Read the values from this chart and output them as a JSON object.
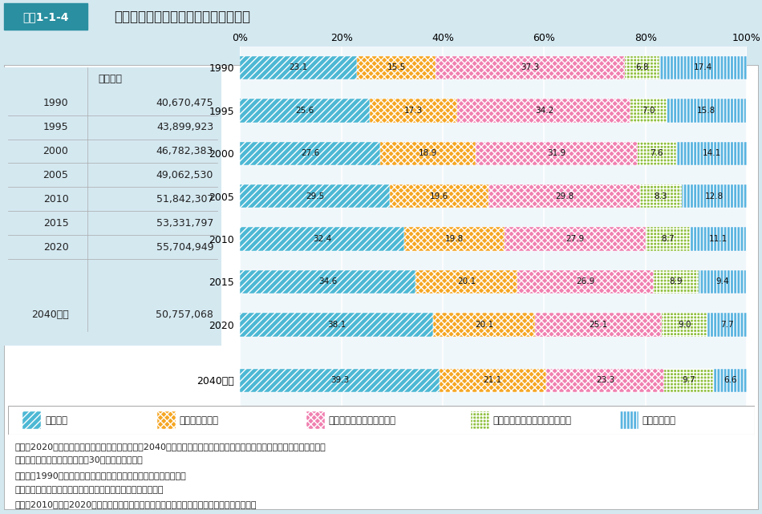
{
  "title": "図表1-1-4　世帯総数・世帯類型の構成割合の推移",
  "header_box_label": "図表1-1-4",
  "header_title": "世帯総数・世帯類型の構成割合の推移",
  "years": [
    "1990",
    "1995",
    "2000",
    "2005",
    "2010",
    "2015",
    "2020",
    "2040推計"
  ],
  "totals": [
    "40,670,475",
    "43,899,923",
    "46,782,383",
    "49,062,530",
    "51,842,307",
    "53,331,797",
    "55,704,949",
    "50,757,068"
  ],
  "table_header": "世帯総数",
  "categories": [
    "単独世帯",
    "夫婦のみの世帯",
    "夫婦と子どもから成る世帯",
    "ひとり親と子どもから成る世帯",
    "その他の世帯"
  ],
  "data": {
    "単独世帯": [
      23.1,
      25.6,
      27.6,
      29.5,
      32.4,
      34.6,
      38.1,
      39.3
    ],
    "夫婦のみの世帯": [
      15.5,
      17.3,
      18.9,
      19.6,
      19.8,
      20.1,
      20.1,
      21.1
    ],
    "夫婦と子どもから成る世帯": [
      37.3,
      34.2,
      31.9,
      29.8,
      27.9,
      26.9,
      25.1,
      23.3
    ],
    "ひとり親と子どもから成る世帯": [
      6.8,
      7.0,
      7.6,
      8.3,
      8.7,
      8.9,
      9.0,
      9.7
    ],
    "その他の世帯": [
      17.4,
      15.8,
      14.1,
      12.8,
      11.1,
      9.4,
      7.7,
      6.6
    ]
  },
  "colors": {
    "単独世帯": "#4db8d4",
    "夫婦のみの世帯": "#f5a623",
    "夫婦と子どもから成る世帯": "#f080b0",
    "ひとり親と子どもから成る世帯": "#90c040",
    "その他の世帯": "#5ab4e0"
  },
  "bg_color": "#d4e8f0",
  "chart_bg": "#f0f7fa",
  "legend_bg": "#ffffff",
  "note_line1": "資料：2020年までは総務省統計局「国勢調査」、2040年推計値は国立社会保障・人口問題研究所「日本の世帯数の将来推",
  "note_line2": "　　　計（全国推計）」（平成30年推計）による。",
  "note_line3": "（注）　1990年は、「世帯の家族類型」旧分類区分に基づき集計。",
  "note_line4": "　　　世帯類型における「子ども」は、成年の子も含まれる。",
  "note_line5": "　　　2010年から2020年における割合は、世帯の家族類型「不詳」を除いて算出している。"
}
